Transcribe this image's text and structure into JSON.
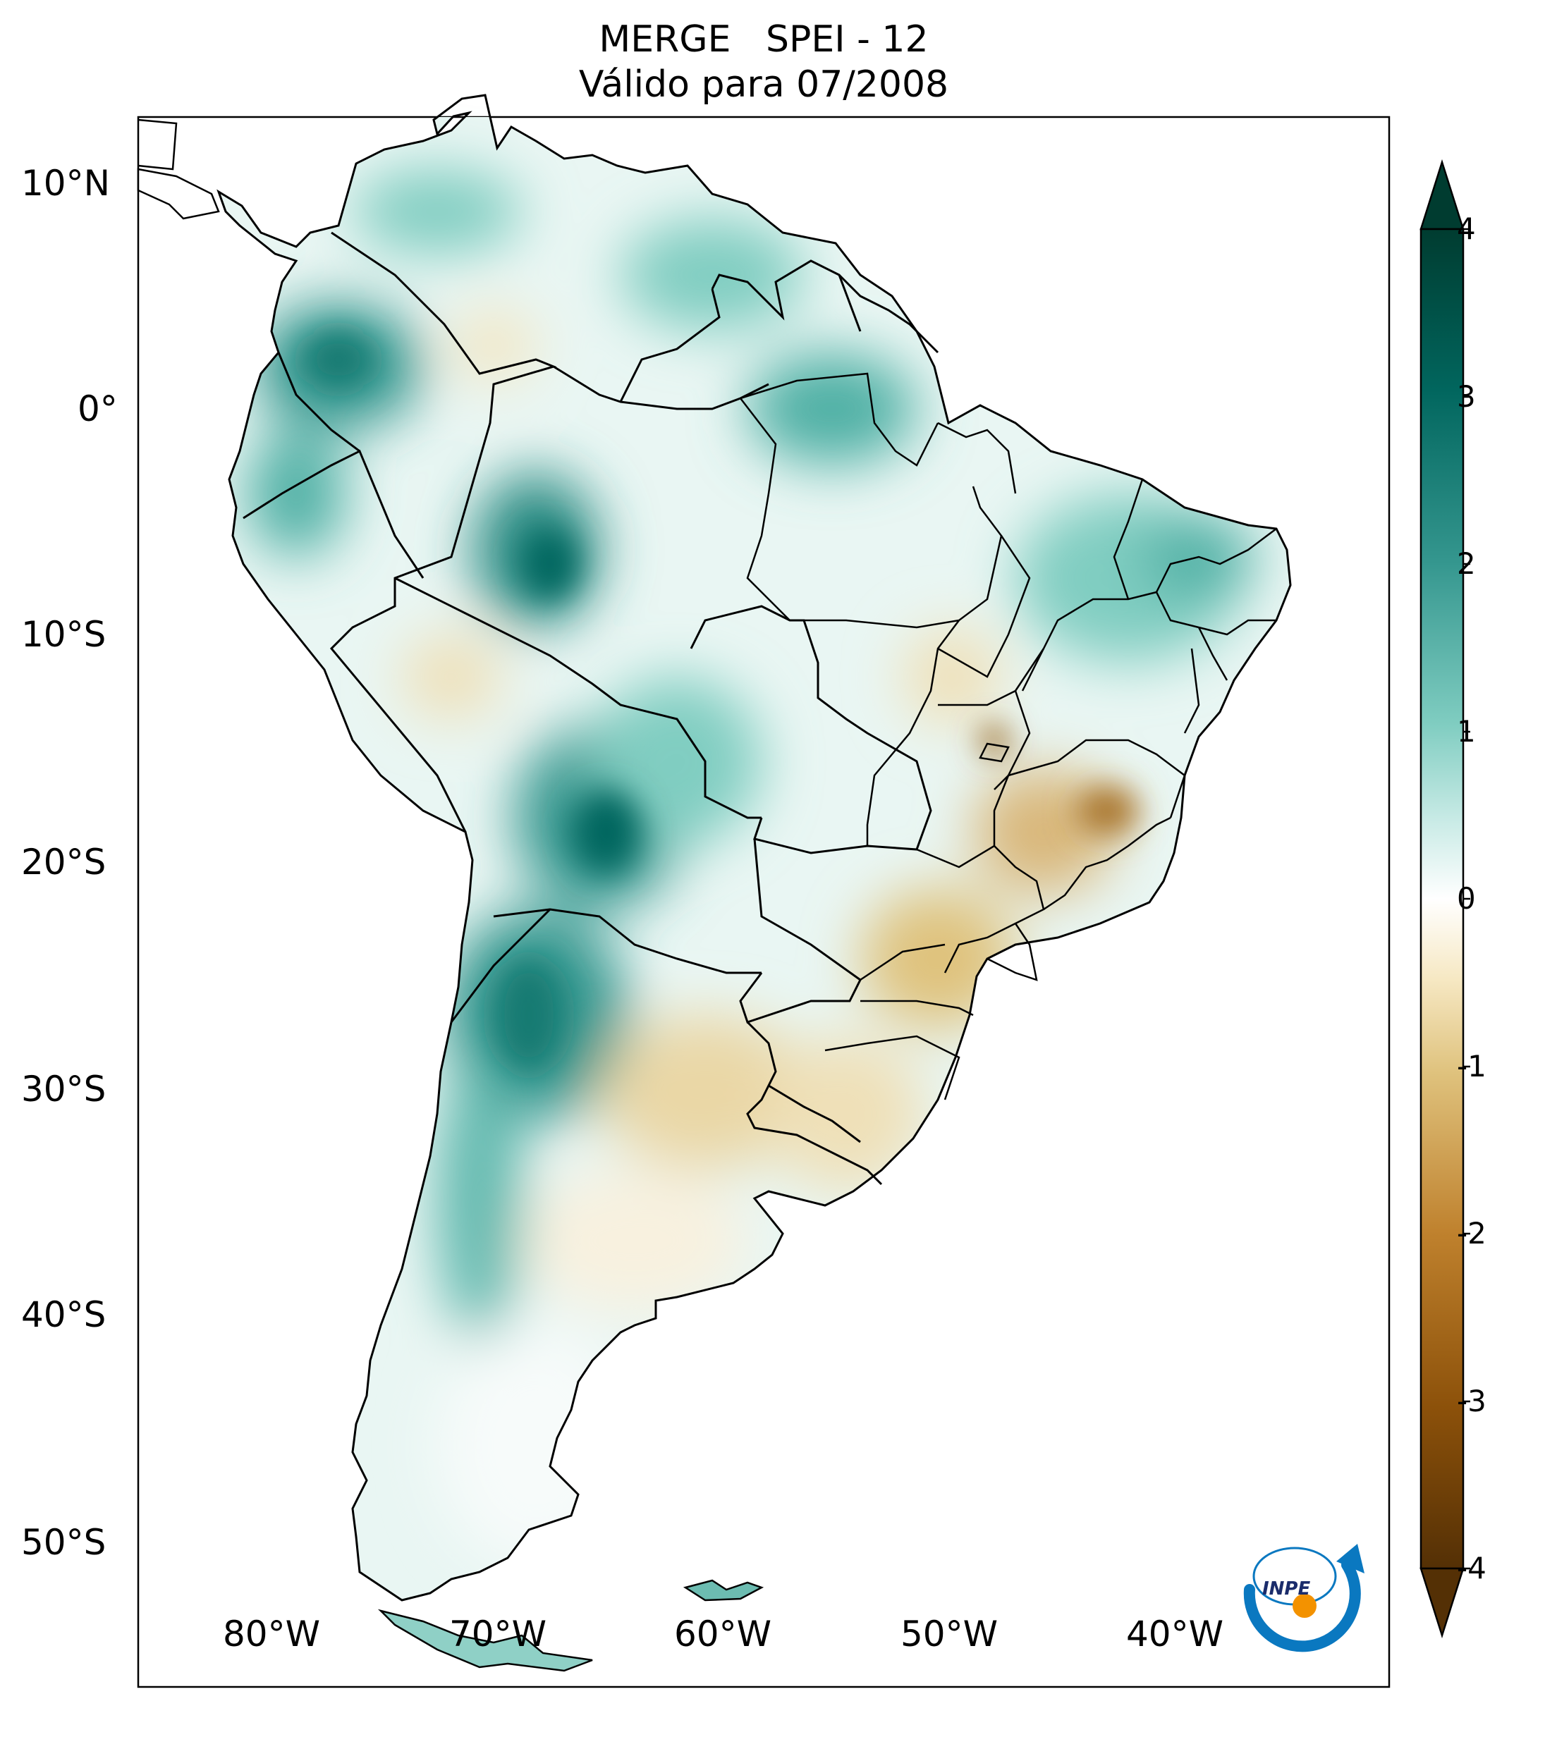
{
  "title": {
    "line1": "MERGE   SPEI - 12",
    "line2": "Válido para 07/2008"
  },
  "map": {
    "lon_range": [
      -85,
      -30
    ],
    "lat_range": [
      -56,
      13
    ],
    "lat_ticks": [
      "10°N",
      "0°",
      "10°S",
      "20°S",
      "30°S",
      "40°S",
      "50°S"
    ],
    "lon_ticks": [
      "80°W",
      "70°W",
      "60°W",
      "50°W",
      "40°W"
    ],
    "land_fill_base": "#ffffff",
    "border_color": "#000000"
  },
  "colorbar": {
    "min": -4,
    "max": 4,
    "extend": "both",
    "labels": [
      "4",
      "3",
      "2",
      "1",
      "0",
      "-1",
      "-2",
      "-3",
      "-4"
    ],
    "palette": [
      "#543005",
      "#8c510a",
      "#bf812d",
      "#dfc27d",
      "#f6e8c3",
      "#ffffff",
      "#c7eae5",
      "#80cdc1",
      "#35978f",
      "#01665e",
      "#003c30"
    ]
  },
  "logo": {
    "text": "INPE",
    "colors": [
      "#0a78c0",
      "#f39200"
    ]
  }
}
